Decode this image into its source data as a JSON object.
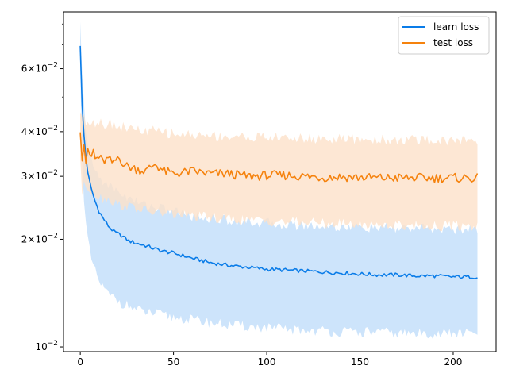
{
  "chart_data": {
    "type": "line",
    "title": "",
    "xlabel": "",
    "ylabel": "",
    "xlim": [
      -9,
      223
    ],
    "ylim": [
      0.0097,
      0.0865
    ],
    "yscale": "log",
    "grid": false,
    "legend_position": "top-right",
    "x_ticks": [
      0,
      50,
      100,
      150,
      200
    ],
    "y_ticks": [
      {
        "value": 0.01,
        "base": "10",
        "exp": "−2"
      },
      {
        "value": 0.02,
        "base": "2×10",
        "exp": "−2"
      },
      {
        "value": 0.03,
        "base": "3×10",
        "exp": "−2"
      },
      {
        "value": 0.04,
        "base": "4×10",
        "exp": "−2"
      },
      {
        "value": 0.06,
        "base": "6×10",
        "exp": "−2"
      }
    ],
    "y_minor_ticks": [
      0.05,
      0.07,
      0.08
    ],
    "colors": {
      "learn": "#0a7ce8",
      "learn_band": "#cde4fb",
      "test": "#f5820d",
      "test_band": "#fde1c9",
      "overlap": "#d7cdcb"
    },
    "series": [
      {
        "name": "learn loss",
        "x": [
          0,
          1,
          2,
          3,
          4,
          5,
          6,
          8,
          10,
          12,
          15,
          18,
          22,
          26,
          30,
          35,
          40,
          45,
          50,
          55,
          60,
          70,
          80,
          90,
          100,
          110,
          120,
          130,
          140,
          150,
          160,
          170,
          180,
          190,
          200,
          213
        ],
        "y": [
          0.07,
          0.047,
          0.039,
          0.034,
          0.031,
          0.029,
          0.0275,
          0.0255,
          0.024,
          0.023,
          0.0218,
          0.021,
          0.0205,
          0.0198,
          0.0195,
          0.0192,
          0.0188,
          0.0185,
          0.0183,
          0.018,
          0.0177,
          0.0172,
          0.0169,
          0.0167,
          0.0165,
          0.0164,
          0.0163,
          0.0162,
          0.0161,
          0.016,
          0.0159,
          0.0159,
          0.0158,
          0.0158,
          0.0157,
          0.0157
        ],
        "lower": [
          0.06,
          0.034,
          0.026,
          0.022,
          0.02,
          0.0185,
          0.0175,
          0.0162,
          0.0153,
          0.0147,
          0.014,
          0.0137,
          0.0133,
          0.013,
          0.0127,
          0.0125,
          0.0124,
          0.0122,
          0.0121,
          0.012,
          0.0119,
          0.0117,
          0.0115,
          0.0114,
          0.0113,
          0.0112,
          0.0111,
          0.0111,
          0.011,
          0.011,
          0.011,
          0.0109,
          0.0109,
          0.0109,
          0.0109,
          0.0109
        ],
        "upper": [
          0.08,
          0.057,
          0.047,
          0.041,
          0.037,
          0.0345,
          0.033,
          0.031,
          0.03,
          0.0292,
          0.0285,
          0.0275,
          0.027,
          0.026,
          0.0255,
          0.025,
          0.0247,
          0.0243,
          0.024,
          0.0237,
          0.0233,
          0.0229,
          0.0226,
          0.0224,
          0.0222,
          0.022,
          0.0219,
          0.0218,
          0.0217,
          0.0216,
          0.0215,
          0.0215,
          0.0214,
          0.0214,
          0.0213,
          0.0213
        ]
      },
      {
        "name": "test loss",
        "x": [
          0,
          1,
          2,
          3,
          4,
          5,
          6,
          7,
          8,
          10,
          12,
          15,
          18,
          20,
          25,
          30,
          35,
          40,
          45,
          50,
          60,
          70,
          80,
          90,
          100,
          110,
          120,
          130,
          140,
          150,
          160,
          170,
          180,
          190,
          200,
          213
        ],
        "y": [
          0.041,
          0.034,
          0.037,
          0.033,
          0.035,
          0.0345,
          0.034,
          0.0355,
          0.0335,
          0.034,
          0.033,
          0.0335,
          0.0325,
          0.034,
          0.032,
          0.0315,
          0.031,
          0.0325,
          0.031,
          0.0305,
          0.031,
          0.0305,
          0.0305,
          0.03,
          0.0302,
          0.0302,
          0.03,
          0.0298,
          0.0299,
          0.0298,
          0.0297,
          0.0297,
          0.0297,
          0.0297,
          0.0297,
          0.0297
        ],
        "lower": [
          0.034,
          0.027,
          0.029,
          0.027,
          0.028,
          0.0275,
          0.027,
          0.0278,
          0.0265,
          0.0265,
          0.026,
          0.026,
          0.0255,
          0.025,
          0.0248,
          0.0245,
          0.024,
          0.0238,
          0.0236,
          0.0235,
          0.0232,
          0.023,
          0.0228,
          0.0226,
          0.0225,
          0.0224,
          0.0223,
          0.0222,
          0.0221,
          0.022,
          0.022,
          0.0219,
          0.0219,
          0.0218,
          0.0218,
          0.0218
        ],
        "upper": [
          0.046,
          0.043,
          0.045,
          0.042,
          0.044,
          0.043,
          0.042,
          0.044,
          0.042,
          0.043,
          0.042,
          0.0425,
          0.042,
          0.0415,
          0.041,
          0.0405,
          0.04,
          0.0402,
          0.0398,
          0.0395,
          0.0392,
          0.039,
          0.0388,
          0.0387,
          0.0386,
          0.0385,
          0.0383,
          0.0382,
          0.0381,
          0.038,
          0.038,
          0.0379,
          0.0379,
          0.0378,
          0.0378,
          0.0378
        ]
      }
    ]
  }
}
